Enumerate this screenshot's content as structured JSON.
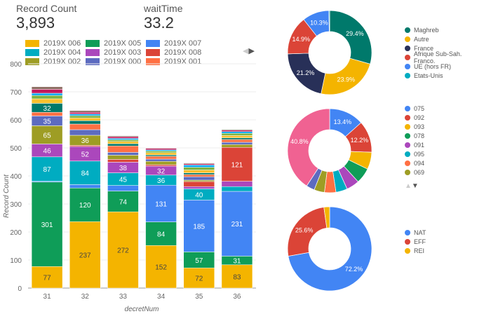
{
  "kpis": [
    {
      "label": "Record Count",
      "value": "3,893"
    },
    {
      "label": "waitTime",
      "value": "33.2"
    }
  ],
  "chart_data": [
    {
      "type": "bar",
      "stacked": true,
      "xlabel": "decretNum",
      "ylabel": "Record Count",
      "ylim": [
        0,
        800
      ],
      "yticks": [
        0,
        100,
        200,
        300,
        400,
        500,
        600,
        700,
        800
      ],
      "categories": [
        "31",
        "32",
        "33",
        "34",
        "35",
        "36"
      ],
      "series": [
        {
          "name": "2019X 006",
          "color": "#f4b400",
          "values": [
            77,
            237,
            272,
            152,
            72,
            83
          ]
        },
        {
          "name": "2019X 005",
          "color": "#0f9d58",
          "values": [
            301,
            120,
            74,
            84,
            57,
            31
          ]
        },
        {
          "name": "2019X 007",
          "color": "#4285f4",
          "values": [
            3,
            12,
            20,
            131,
            185,
            231
          ]
        },
        {
          "name": "2019X 004",
          "color": "#00acc1",
          "values": [
            87,
            84,
            45,
            36,
            40,
            17
          ]
        },
        {
          "name": "2019X 003",
          "color": "#ab47bc",
          "values": [
            46,
            52,
            38,
            32,
            8,
            19
          ]
        },
        {
          "name": "2019X 008",
          "color": "#db4437",
          "values": [
            0,
            4,
            10,
            5,
            18,
            121
          ]
        },
        {
          "name": "2019X 002",
          "color": "#9e9d24",
          "values": [
            65,
            36,
            15,
            12,
            5,
            10
          ]
        },
        {
          "name": "2019X 000",
          "color": "#5c6bc0",
          "values": [
            35,
            20,
            10,
            8,
            12,
            8
          ]
        },
        {
          "name": "2019X 001",
          "color": "#ff7043",
          "values": [
            13,
            20,
            23,
            10,
            8,
            10
          ]
        },
        {
          "name": "other-a",
          "color": "#00796b",
          "values": [
            32,
            12,
            8,
            5,
            6,
            6
          ]
        },
        {
          "name": "other-b",
          "color": "#fbc02d",
          "values": [
            16,
            10,
            8,
            8,
            10,
            8
          ]
        },
        {
          "name": "other-c",
          "color": "#7cb342",
          "values": [
            12,
            8,
            6,
            6,
            10,
            8
          ]
        },
        {
          "name": "other-d",
          "color": "#03a9f4",
          "values": [
            8,
            6,
            5,
            4,
            8,
            6
          ]
        },
        {
          "name": "other-e",
          "color": "#c2185b",
          "values": [
            14,
            6,
            6,
            5,
            4,
            5
          ]
        },
        {
          "name": "other-f",
          "color": "#8d6e63",
          "values": [
            9,
            6,
            3,
            2,
            3,
            3
          ]
        }
      ],
      "legend": [
        "2019X 006",
        "2019X 005",
        "2019X 007",
        "2019X 004",
        "2019X 003",
        "2019X 008",
        "2019X 002",
        "2019X 000",
        "2019X 001"
      ]
    },
    {
      "type": "pie",
      "donut": true,
      "slices": [
        {
          "label": "Maghreb",
          "value": 29.4,
          "color": "#00796b",
          "text": "29.4%"
        },
        {
          "label": "Autre",
          "value": 23.9,
          "color": "#f4b400",
          "text": "23.9%"
        },
        {
          "label": "France",
          "value": 21.2,
          "color": "#283058",
          "text": "21.2%"
        },
        {
          "label": "Afrique Sub-Sah. Franco.",
          "value": 14.9,
          "color": "#db4437",
          "text": "14.9%"
        },
        {
          "label": "UE (hors FR)",
          "value": 10.3,
          "color": "#4285f4",
          "text": "10.3%"
        },
        {
          "label": "Etats-Unis",
          "value": 0.3,
          "color": "#00acc1",
          "text": ""
        }
      ]
    },
    {
      "type": "pie",
      "donut": true,
      "slices": [
        {
          "label": "075",
          "value": 13.4,
          "color": "#4285f4",
          "text": "13.4%"
        },
        {
          "label": "092",
          "value": 12.2,
          "color": "#db4437",
          "text": "12.2%"
        },
        {
          "label": "093",
          "value": 6.6,
          "color": "#f4b400",
          "text": ""
        },
        {
          "label": "078",
          "value": 6,
          "color": "#0f9d58",
          "text": ""
        },
        {
          "label": "091",
          "value": 5,
          "color": "#ab47bc",
          "text": ""
        },
        {
          "label": "095",
          "value": 4.4,
          "color": "#00acc1",
          "text": ""
        },
        {
          "label": "094",
          "value": 4.4,
          "color": "#ff7043",
          "text": ""
        },
        {
          "label": "069",
          "value": 4,
          "color": "#9e9d24",
          "text": ""
        },
        {
          "label": "",
          "value": 3.2,
          "color": "#5c6bc0",
          "text": ""
        },
        {
          "label": "",
          "value": 40.8,
          "color": "#f06292",
          "text": "40.8%"
        }
      ]
    },
    {
      "type": "pie",
      "donut": true,
      "slices": [
        {
          "label": "NAT",
          "value": 72.2,
          "color": "#4285f4",
          "text": "72.2%"
        },
        {
          "label": "EFF",
          "value": 25.6,
          "color": "#db4437",
          "text": "25.6%"
        },
        {
          "label": "REI",
          "value": 2.2,
          "color": "#f4b400",
          "text": ""
        }
      ]
    }
  ]
}
